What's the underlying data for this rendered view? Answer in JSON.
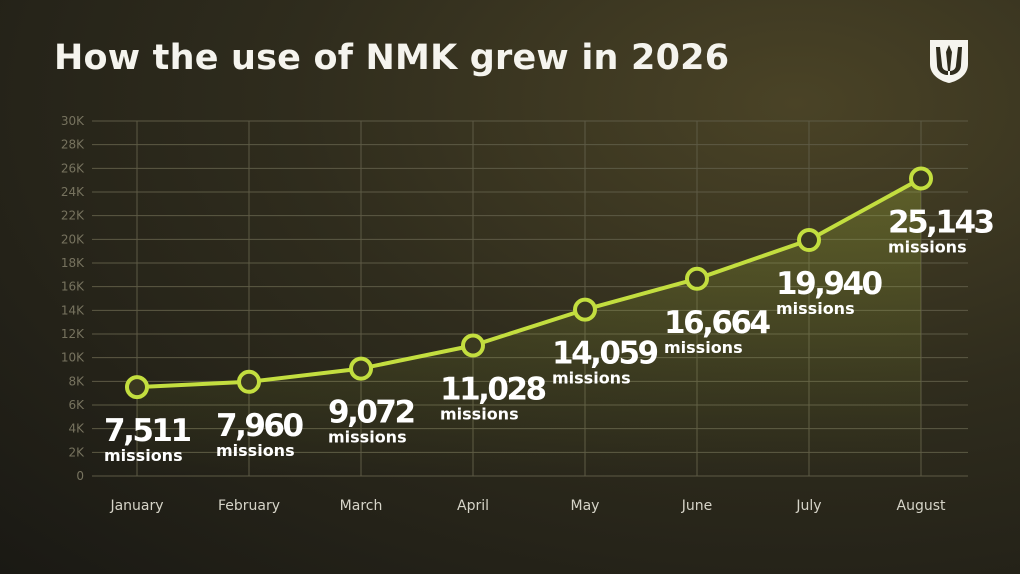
{
  "title": "How the use of NMK grew in 2026",
  "logo_icon": "trident-shield-icon",
  "colors": {
    "line": "#c3de3f",
    "marker_fill": "#3a3820",
    "grid": "#5d5a45",
    "text": "#ffffff"
  },
  "chart_data": {
    "type": "line",
    "title": "How the use of NMK grew in 2026",
    "xlabel": "",
    "ylabel": "",
    "categories": [
      "January",
      "February",
      "March",
      "April",
      "May",
      "June",
      "July",
      "August"
    ],
    "values": [
      7511,
      7960,
      9072,
      11028,
      14059,
      16664,
      19940,
      25143
    ],
    "value_labels": [
      "7,511",
      "7,960",
      "9,072",
      "11,028",
      "14,059",
      "16,664",
      "19,940",
      "25,143"
    ],
    "unit_label": "missions",
    "ylim": [
      0,
      30000
    ],
    "yticks": [
      0,
      2000,
      4000,
      6000,
      8000,
      10000,
      12000,
      14000,
      16000,
      18000,
      20000,
      22000,
      24000,
      26000,
      28000,
      30000
    ],
    "ytick_labels": [
      "0",
      "2K",
      "4K",
      "6K",
      "8K",
      "10K",
      "12K",
      "14K",
      "16K",
      "18K",
      "20K",
      "22K",
      "24K",
      "26K",
      "28K",
      "30K"
    ],
    "grid": true,
    "legend": "none"
  }
}
